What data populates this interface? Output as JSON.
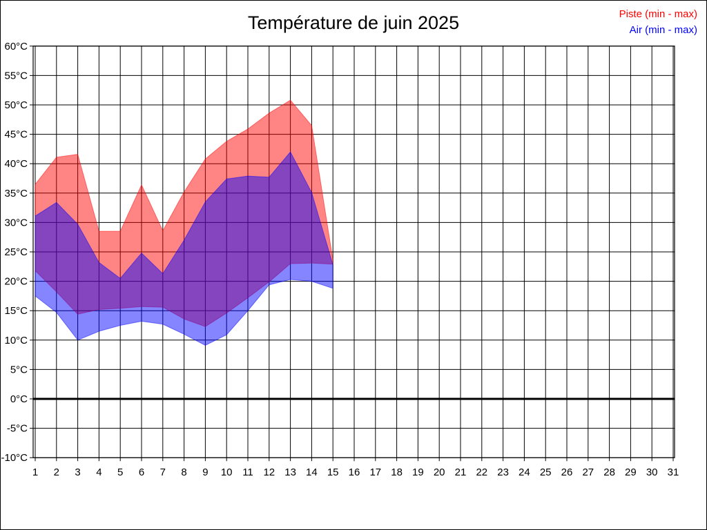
{
  "title": "Température de juin 2025",
  "legend": {
    "items": [
      {
        "label": "Piste (min - max)",
        "color": "#ff0000"
      },
      {
        "label": "Air (min - max)",
        "color": "#0000ff"
      }
    ]
  },
  "chart_data": {
    "type": "area",
    "title": "Température de juin 2025",
    "xlabel": "",
    "ylabel": "",
    "xlim": [
      1,
      31
    ],
    "ylim": [
      -10,
      60
    ],
    "grid": true,
    "zero_line_at": 0,
    "legend_position": "top-right",
    "x_ticks": [
      1,
      2,
      3,
      4,
      5,
      6,
      7,
      8,
      9,
      10,
      11,
      12,
      13,
      14,
      15,
      16,
      17,
      18,
      19,
      20,
      21,
      22,
      23,
      24,
      25,
      26,
      27,
      28,
      29,
      30,
      31
    ],
    "y_ticks": [
      {
        "value": -10,
        "label": "-10°C"
      },
      {
        "value": -5,
        "label": "-5°C"
      },
      {
        "value": 0,
        "label": "0°C"
      },
      {
        "value": 5,
        "label": "5°C"
      },
      {
        "value": 10,
        "label": "10°C"
      },
      {
        "value": 15,
        "label": "15°C"
      },
      {
        "value": 20,
        "label": "20°C"
      },
      {
        "value": 25,
        "label": "25°C"
      },
      {
        "value": 30,
        "label": "30°C"
      },
      {
        "value": 35,
        "label": "35°C"
      },
      {
        "value": 40,
        "label": "40°C"
      },
      {
        "value": 45,
        "label": "45°C"
      },
      {
        "value": 50,
        "label": "50°C"
      },
      {
        "value": 55,
        "label": "55°C"
      },
      {
        "value": 60,
        "label": "60°C"
      }
    ],
    "x": [
      1,
      2,
      3,
      4,
      5,
      6,
      7,
      8,
      9,
      10,
      11,
      12,
      13,
      14,
      15
    ],
    "series": [
      {
        "name": "Piste (min - max)",
        "color": "#ff0000",
        "opacity": 0.48,
        "min": [
          21.8,
          18.2,
          14.4,
          15.2,
          15.4,
          15.7,
          15.6,
          13.6,
          12.3,
          14.6,
          17.2,
          19.9,
          23.0,
          23.1,
          22.9
        ],
        "max": [
          36.5,
          41.1,
          41.6,
          28.5,
          28.5,
          36.4,
          28.6,
          35.2,
          40.8,
          43.8,
          45.9,
          48.6,
          50.8,
          46.5,
          23.6
        ]
      },
      {
        "name": "Air (min - max)",
        "color": "#0000ff",
        "opacity": 0.48,
        "min": [
          17.5,
          14.7,
          10.0,
          11.5,
          12.5,
          13.2,
          12.7,
          11.0,
          9.1,
          10.9,
          15.0,
          19.4,
          20.3,
          20.0,
          18.8
        ],
        "max": [
          31.1,
          33.4,
          29.7,
          23.2,
          20.5,
          24.8,
          21.3,
          27.0,
          33.5,
          37.4,
          37.9,
          37.7,
          42.0,
          35.1,
          22.8
        ]
      }
    ]
  }
}
